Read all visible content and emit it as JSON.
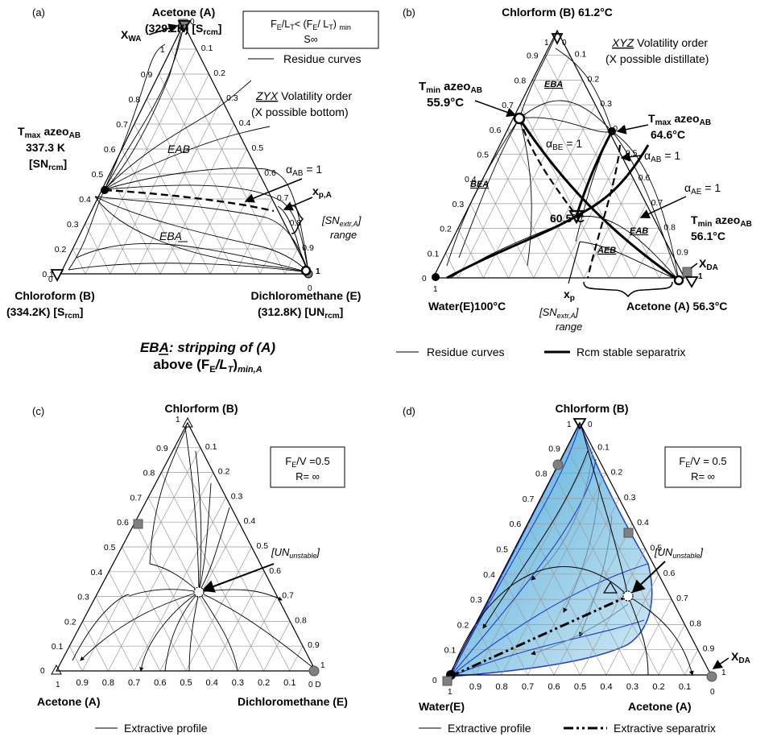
{
  "colors": {
    "line": "#000000",
    "grid": "#9a9a9a",
    "fill": "#5ab4dc",
    "fill_edge": "#1f3cc8",
    "marker_gray": "#808080"
  },
  "panel_a": {
    "letter": "(a)",
    "top_name": "Acetone (A)",
    "top_temp": "(329.2K) [S",
    "top_temp_sub": "rcm",
    "top_temp_end": "]",
    "left_name": "Chloroform (B)",
    "left_temp": "(334.2K) [S",
    "left_temp_sub": "rcm",
    "left_temp_end": "]",
    "right_name": "Dichloromethane (E)",
    "right_temp": "(312.8K) [UN",
    "right_temp_sub": "rcm",
    "right_temp_end": "]",
    "xwa_main": "X",
    "xwa_sub": "WA",
    "tmax_line1_main": "T",
    "tmax_line1_sub": "max",
    "tmax_line1_rest": " azeo",
    "tmax_line1_sub2": "AB",
    "tmax_line2": "337.3 K",
    "tmax_line3_main": "[SN",
    "tmax_line3_sub": "rcm",
    "tmax_line3_end": "]",
    "box_line1": "F",
    "box_line1_sub": "E",
    "box_line1_b": "/L",
    "box_line1_sub2": "T",
    "box_line1_c": "< (F",
    "box_line1_sub3": "E",
    "box_line1_d": "/ L",
    "box_line1_sub4": "T",
    "box_line1_e": ") ",
    "box_line1_sub5": "min",
    "box_line2": "S∞",
    "legend": "Residue curves",
    "vol_order_a": "ZYX",
    "vol_order_b": " Volatility order",
    "vol_order2": "(X possible bottom)",
    "region1": "EAB",
    "region2": "EBA",
    "alpha_main": "α",
    "alpha_sub": "AB",
    "alpha_eq": " = 1",
    "xp_main": "x",
    "xp_sub": "p,A",
    "sn_range_a": "[SN",
    "sn_range_sub": "extr,A",
    "sn_range_b": "]",
    "sn_range2": "range",
    "caption1": "EBA: stripping of (A)",
    "caption2_a": "above (F",
    "caption2_sub1": "E",
    "caption2_b": "/L",
    "caption2_sub2": "T",
    "caption2_c": ")",
    "caption2_sub3": "min,A",
    "left_ticks": [
      "0.1",
      "0.2",
      "0.3",
      "0.4",
      "0.5",
      "0.6",
      "0.7",
      "0.8",
      "0.9",
      "1"
    ],
    "right_ticks": [
      "0.1",
      "0.2",
      "0.3",
      "0.4",
      "0.5",
      "0.6",
      "0.7",
      "0.8",
      "0.9"
    ],
    "vertex_zero_top": "0",
    "vertex_zero_left": "0",
    "vertex_one_right": "1",
    "vertex_zero_right": "0"
  },
  "panel_b": {
    "letter": "(b)",
    "top_name": "Chlorform (B) 61.2°C",
    "left_name": "Water(E)100°C",
    "right_name": "Acetone (A) 56.3°C",
    "vol_a": "XYZ",
    "vol_b": " Volatility order",
    "vol2": "(X possible distillate)",
    "tmin_l1_main": "T",
    "tmin_l1_sub": "min",
    "tmin_l1_rest": " azeo",
    "tmin_l1_sub2": "AB",
    "tmin_l2": "55.9°C",
    "tmax_l1_main": "T",
    "tmax_l1_sub": "max",
    "tmax_l1_rest": " azeo",
    "tmax_l1_sub2": "AB",
    "tmax_l2": "64.6°C",
    "alpha_ab_main": "α",
    "alpha_ab_sub": "AB",
    "alpha_ab_eq": " = 1",
    "alpha_be_main": "α",
    "alpha_be_sub": "BE",
    "alpha_be_eq": " = 1",
    "alpha_ae_main": "α",
    "alpha_ae_sub": "AE",
    "alpha_ae_eq": " = 1",
    "tmin2_l1_main": "T",
    "tmin2_l1_sub": "min",
    "tmin2_l1_rest": "  azeo",
    "tmin2_l1_sub2": "AB",
    "tmin2_l2": "56.1°C",
    "ternary_temp": "60.5°C",
    "xda_main": "X",
    "xda_sub": "DA",
    "xp_main": "x",
    "xp_sub": "p",
    "sn_a": "[SN",
    "sn_sub": "extr,A",
    "sn_b": "]",
    "sn2": "range",
    "regions": [
      "EBA",
      "BEA",
      "EAB",
      "AEB"
    ],
    "legend1": "Residue curves",
    "legend2": "Rcm stable separatrix",
    "left_ticks": [
      "0.1",
      "0.2",
      "0.3",
      "0.4",
      "0.5",
      "0.6",
      "0.7",
      "0.8",
      "0.9"
    ],
    "right_ticks": [
      "0.1",
      "0.2",
      "0.3",
      "0.4",
      "0.5",
      "0.6",
      "0.7",
      "0.8",
      "0.9"
    ],
    "vertex_top_one": "1",
    "vertex_top_zero": "0",
    "vertex_left_zero": "0",
    "vertex_left_one": "1",
    "vertex_right_one": "1"
  },
  "panel_c": {
    "letter": "(c)",
    "top_name": "Chlorform (B)",
    "left_name": "Acetone (A)",
    "right_name": "Dichloromethane (E)",
    "box1_a": "F",
    "box1_sub": "E",
    "box1_b": "/V =0.5",
    "box2": "R= ∞",
    "un_a": "[UN",
    "un_sub": "unstable",
    "un_b": "]",
    "legend": "Extractive profile",
    "left_ticks": [
      "0.1",
      "0.2",
      "0.3",
      "0.4",
      "0.5",
      "0.6",
      "0.7",
      "0.8",
      "0.9"
    ],
    "right_ticks": [
      "0.1",
      "0.2",
      "0.3",
      "0.4",
      "0.5",
      "0.6",
      "0.7",
      "0.8",
      "0.9"
    ],
    "bottom_ticks": [
      "0.9",
      "0.8",
      "0.7",
      "0.6",
      "0.5",
      "0.4",
      "0.3",
      "0.2",
      "0.1"
    ],
    "vertex_top_one": "1",
    "vertex_left_zero": "0",
    "vertex_left_one": "1",
    "vertex_right_one": "1",
    "vertex_right_zero": "0 D"
  },
  "panel_d": {
    "letter": "(d)",
    "top_name": "Chlorform (B)",
    "left_name": "Water(E)",
    "right_name": "Acetone (A)",
    "box1_a": "F",
    "box1_sub": "E",
    "box1_b": "/V = 0.5",
    "box2": "R= ∞",
    "un_a": "[UN",
    "un_sub": "unstable",
    "un_b": "]",
    "xda_main": "X",
    "xda_sub": "DA",
    "legend1": "Extractive profile",
    "legend2": "Extractive separatrix",
    "left_ticks": [
      "0.1",
      "0.2",
      "0.3",
      "0.4",
      "0.5",
      "0.6",
      "0.7",
      "0.8",
      "0.9"
    ],
    "right_ticks": [
      "0.1",
      "0.2",
      "0.3",
      "0.4",
      "0.5",
      "0.6",
      "0.7",
      "0.8",
      "0.9"
    ],
    "bottom_ticks": [
      "0.9",
      "0.8",
      "0.7",
      "0.6",
      "0.5",
      "0.4",
      "0.3",
      "0.2",
      "0.1"
    ],
    "vertex_top_one": "1",
    "vertex_top_zero": "0",
    "vertex_left_zero": "0",
    "vertex_left_one": "1",
    "vertex_right_one": "1",
    "vertex_right_zero": "0"
  }
}
